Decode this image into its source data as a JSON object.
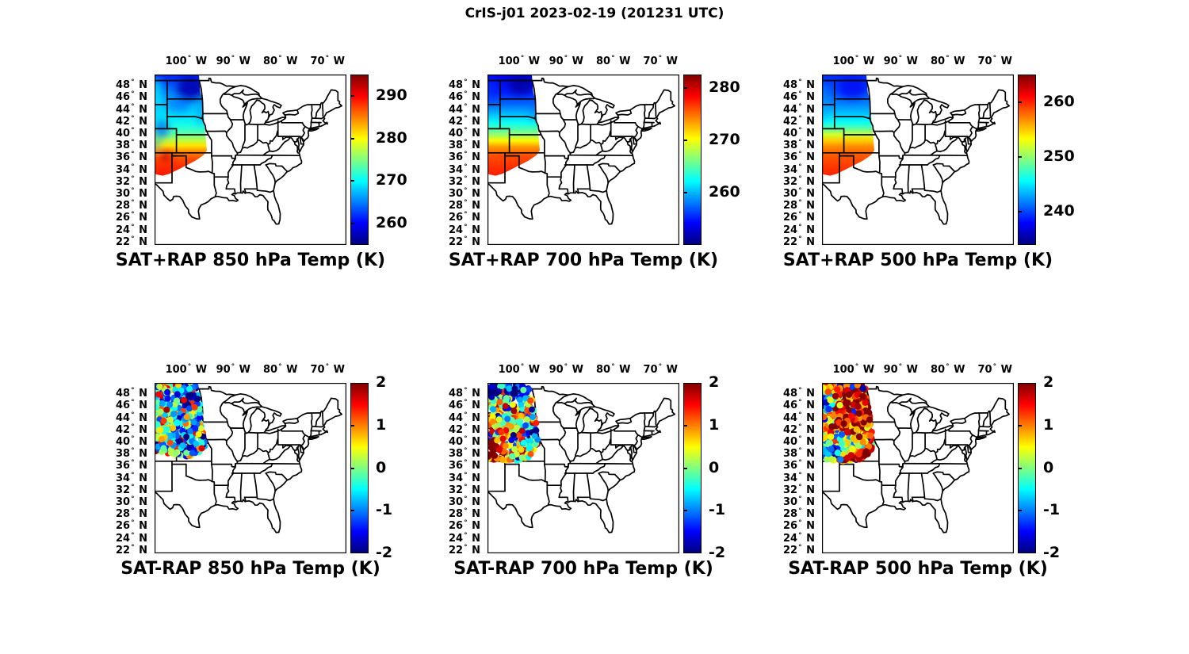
{
  "figure_title": "CrIS-j01 2023-02-19 (201231 UTC)",
  "colormap": "jet",
  "axes": {
    "lon_tick_labels": [
      "100° W",
      "90° W",
      "80° W",
      "70° W"
    ],
    "lon_tick_values": [
      -100,
      -90,
      -80,
      -70
    ],
    "lat_tick_labels": [
      "48° N",
      "46° N",
      "44° N",
      "42° N",
      "40° N",
      "38° N",
      "36° N",
      "34° N",
      "32° N",
      "30° N",
      "28° N",
      "26° N",
      "24° N",
      "22° N"
    ],
    "lat_tick_values": [
      48,
      46,
      44,
      42,
      40,
      38,
      36,
      34,
      32,
      30,
      28,
      26,
      24,
      22
    ],
    "extent": {
      "lon": [
        -106.7,
        -66.0
      ],
      "lat": [
        21.7,
        50.0
      ]
    }
  },
  "chart_data": [
    {
      "id": "sat-plus-rap-850",
      "type": "heatmap",
      "title": "SAT+RAP 850 hPa Temp (K)",
      "units": "K",
      "colorbar": {
        "vmin": 255,
        "vmax": 295,
        "ticks": [
          290,
          280,
          270,
          260
        ]
      },
      "region": [
        [
          -106.7,
          50.0
        ],
        [
          -97.3,
          50.0
        ],
        [
          -97.0,
          47.0
        ],
        [
          -96.6,
          45.9
        ],
        [
          -96.3,
          43.5
        ],
        [
          -96.05,
          41.0
        ],
        [
          -95.8,
          39.3
        ],
        [
          -95.6,
          37.4
        ],
        [
          -96.3,
          36.6
        ],
        [
          -98.0,
          35.7
        ],
        [
          -100.0,
          34.9
        ],
        [
          -102.0,
          34.1
        ],
        [
          -103.6,
          33.5
        ],
        [
          -105.0,
          33.2
        ],
        [
          -106.3,
          33.4
        ],
        [
          -106.7,
          33.6
        ]
      ],
      "lat_profile": [
        [
          50,
          261
        ],
        [
          47.5,
          264.5
        ],
        [
          45,
          267.5
        ],
        [
          43,
          269
        ],
        [
          41.5,
          271
        ],
        [
          40.2,
          273.5
        ],
        [
          39.2,
          277
        ],
        [
          38.2,
          281
        ],
        [
          37.2,
          284.5
        ],
        [
          36,
          287
        ],
        [
          34.5,
          288.5
        ],
        [
          33.2,
          289
        ]
      ],
      "patches": [
        {
          "lon": -99.0,
          "lat": 47.7,
          "rlon": 3.0,
          "rlat": 2.0,
          "value": 257,
          "opacity": 0.9
        },
        {
          "lon": -101.5,
          "lat": 45.0,
          "rlon": 2.5,
          "rlat": 1.2,
          "value": 263,
          "opacity": 0.5
        },
        {
          "lon": -106.4,
          "lat": 47.0,
          "rlon": 1.0,
          "rlat": 2.6,
          "value": 270,
          "opacity": 0.8
        },
        {
          "lon": -105.2,
          "lat": 41.0,
          "rlon": 1.5,
          "rlat": 1.5,
          "value": 263,
          "opacity": 0.7
        },
        {
          "lon": -106.4,
          "lat": 38.4,
          "rlon": 0.8,
          "rlat": 1.0,
          "value": 266,
          "opacity": 0.7
        },
        {
          "lon": -96.9,
          "lat": 43.8,
          "rlon": 0.8,
          "rlat": 2.4,
          "value": 265,
          "opacity": 0.5
        },
        {
          "lon": -104.4,
          "lat": 36.4,
          "rlon": 1.2,
          "rlat": 0.9,
          "value": 292.5,
          "opacity": 0.85
        }
      ]
    },
    {
      "id": "sat-plus-rap-700",
      "type": "heatmap",
      "title": "SAT+RAP 700 hPa Temp (K)",
      "units": "K",
      "colorbar": {
        "vmin": 250,
        "vmax": 282.5,
        "ticks": [
          280,
          270,
          260
        ]
      },
      "region": [
        [
          -106.7,
          50.0
        ],
        [
          -97.3,
          50.0
        ],
        [
          -97.0,
          47.0
        ],
        [
          -96.6,
          45.9
        ],
        [
          -96.3,
          43.5
        ],
        [
          -96.05,
          41.0
        ],
        [
          -95.8,
          39.3
        ],
        [
          -95.6,
          37.4
        ],
        [
          -96.3,
          36.6
        ],
        [
          -98.0,
          35.7
        ],
        [
          -100.0,
          34.9
        ],
        [
          -102.0,
          34.1
        ],
        [
          -103.6,
          33.5
        ],
        [
          -105.0,
          33.2
        ],
        [
          -106.3,
          33.4
        ],
        [
          -106.7,
          33.6
        ]
      ],
      "lat_profile": [
        [
          50,
          253.5
        ],
        [
          47,
          255
        ],
        [
          45,
          257.5
        ],
        [
          43.5,
          260
        ],
        [
          42,
          262.5
        ],
        [
          41,
          264.5
        ],
        [
          40,
          267
        ],
        [
          39,
          270.5
        ],
        [
          38,
          273.5
        ],
        [
          36.5,
          276
        ],
        [
          34.5,
          277
        ],
        [
          33.2,
          277.5
        ]
      ],
      "patches": [
        {
          "lon": -99.6,
          "lat": 48.3,
          "rlon": 2.8,
          "rlat": 1.6,
          "value": 251,
          "opacity": 0.85
        },
        {
          "lon": -106.3,
          "lat": 47.5,
          "rlon": 1.0,
          "rlat": 2.2,
          "value": 256,
          "opacity": 0.6
        },
        {
          "lon": -96.9,
          "lat": 44.0,
          "rlon": 0.8,
          "rlat": 2.0,
          "value": 257,
          "opacity": 0.4
        }
      ]
    },
    {
      "id": "sat-plus-rap-500",
      "type": "heatmap",
      "title": "SAT+RAP 500 hPa Temp (K)",
      "units": "K",
      "colorbar": {
        "vmin": 234,
        "vmax": 265,
        "ticks": [
          260,
          250,
          240
        ]
      },
      "region": [
        [
          -106.7,
          50.0
        ],
        [
          -97.3,
          50.0
        ],
        [
          -97.0,
          47.0
        ],
        [
          -96.6,
          45.9
        ],
        [
          -96.3,
          43.5
        ],
        [
          -96.05,
          41.0
        ],
        [
          -95.8,
          39.3
        ],
        [
          -95.6,
          37.4
        ],
        [
          -96.3,
          36.6
        ],
        [
          -98.0,
          35.7
        ],
        [
          -100.0,
          34.9
        ],
        [
          -102.0,
          34.1
        ],
        [
          -103.6,
          33.5
        ],
        [
          -105.0,
          33.2
        ],
        [
          -106.3,
          33.4
        ],
        [
          -106.7,
          33.6
        ]
      ],
      "lat_profile": [
        [
          50,
          239
        ],
        [
          47,
          240.5
        ],
        [
          45,
          242
        ],
        [
          43,
          244.5
        ],
        [
          42,
          246
        ],
        [
          41,
          248.5
        ],
        [
          40,
          252
        ],
        [
          39,
          255
        ],
        [
          38,
          257
        ],
        [
          36.5,
          258.5
        ],
        [
          34.5,
          259.5
        ],
        [
          33.2,
          260
        ]
      ],
      "patches": [
        {
          "lon": -100.3,
          "lat": 47.8,
          "rlon": 3.2,
          "rlat": 1.9,
          "value": 237.5,
          "opacity": 0.7
        },
        {
          "lon": -106.4,
          "lat": 45.5,
          "rlon": 0.9,
          "rlat": 3.2,
          "value": 243,
          "opacity": 0.5
        }
      ]
    },
    {
      "id": "sat-minus-rap-850",
      "type": "scatter",
      "title": "SAT-RAP 850 hPa Temp (K)",
      "units": "K",
      "colorbar": {
        "vmin": -2,
        "vmax": 2,
        "ticks": [
          2,
          1,
          0,
          -1,
          -2
        ]
      },
      "region": [
        [
          -106.6,
          49.6
        ],
        [
          -103.8,
          49.6
        ],
        [
          -100.5,
          49.7
        ],
        [
          -97.6,
          49.7
        ],
        [
          -97.0,
          46.5
        ],
        [
          -96.5,
          44.0
        ],
        [
          -96.2,
          42.0
        ],
        [
          -96.0,
          40.0
        ],
        [
          -95.9,
          39.0
        ],
        [
          -97.0,
          38.2
        ],
        [
          -99.0,
          37.8
        ],
        [
          -102.0,
          37.8
        ],
        [
          -104.5,
          38.2
        ],
        [
          -106.6,
          38.6
        ]
      ],
      "pattern": {
        "seed": 11,
        "count": 470,
        "dot_radius": 4.0,
        "base": -0.35,
        "noise": 0.85,
        "outlier_frac": 0.15,
        "blobs": [
          {
            "lon": -98.2,
            "lat": 47.9,
            "slon": 1.6,
            "slat": 1.2,
            "dv": -2.7
          },
          {
            "lon": -99.0,
            "lat": 41.3,
            "slon": 1.3,
            "slat": 1.1,
            "dv": -1.2
          },
          {
            "lon": -102.6,
            "lat": 44.6,
            "slon": 2.0,
            "slat": 1.3,
            "dv": 0.35
          }
        ]
      }
    },
    {
      "id": "sat-minus-rap-700",
      "type": "scatter",
      "title": "SAT-RAP 700 hPa Temp (K)",
      "units": "K",
      "colorbar": {
        "vmin": -2,
        "vmax": 2,
        "ticks": [
          2,
          1,
          0,
          -1,
          -2
        ]
      },
      "region": [
        [
          -106.6,
          49.6
        ],
        [
          -97.6,
          49.7
        ],
        [
          -97.0,
          46.5
        ],
        [
          -96.5,
          44.0
        ],
        [
          -96.1,
          41.5
        ],
        [
          -95.9,
          39.8
        ],
        [
          -96.3,
          38.6
        ],
        [
          -98.0,
          37.4
        ],
        [
          -101.0,
          37.0
        ],
        [
          -103.5,
          37.0
        ],
        [
          -105.0,
          37.2
        ],
        [
          -106.6,
          37.4
        ]
      ],
      "pattern": {
        "seed": 23,
        "count": 470,
        "dot_radius": 4.0,
        "base": 0.25,
        "noise": 0.8,
        "outlier_frac": 0.1,
        "blobs": [
          {
            "lon": -105.7,
            "lat": 48.7,
            "slon": 1.4,
            "slat": 1.0,
            "dv": -3.0
          },
          {
            "lon": -99.9,
            "lat": 48.7,
            "slon": 1.9,
            "slat": 1.0,
            "dv": -3.0
          },
          {
            "lon": -106.2,
            "lat": 39.9,
            "slon": 1.0,
            "slat": 2.3,
            "dv": 2.6
          },
          {
            "lon": -104.8,
            "lat": 38.4,
            "slon": 1.3,
            "slat": 1.0,
            "dv": 2.2
          },
          {
            "lon": -97.7,
            "lat": 41.4,
            "slon": 1.2,
            "slat": 1.0,
            "dv": -1.9
          },
          {
            "lon": -98.9,
            "lat": 43.4,
            "slon": 1.6,
            "slat": 1.0,
            "dv": -0.5
          }
        ]
      }
    },
    {
      "id": "sat-minus-rap-500",
      "type": "scatter",
      "title": "SAT-RAP 500 hPa Temp (K)",
      "units": "K",
      "colorbar": {
        "vmin": -2,
        "vmax": 2,
        "ticks": [
          2,
          1,
          0,
          -1,
          -2
        ]
      },
      "region": [
        [
          -106.6,
          49.6
        ],
        [
          -97.6,
          49.7
        ],
        [
          -97.0,
          46.5
        ],
        [
          -96.5,
          44.0
        ],
        [
          -96.1,
          41.5
        ],
        [
          -95.9,
          39.8
        ],
        [
          -96.3,
          38.6
        ],
        [
          -98.0,
          37.4
        ],
        [
          -101.0,
          37.0
        ],
        [
          -103.5,
          37.0
        ],
        [
          -105.0,
          37.2
        ],
        [
          -106.6,
          37.4
        ]
      ],
      "pattern": {
        "seed": 37,
        "count": 800,
        "dot_radius": 4.2,
        "base": 1.75,
        "noise": 0.8,
        "outlier_frac": 0.05,
        "blobs": [
          {
            "lon": -104.3,
            "lat": 38.7,
            "slon": 1.7,
            "slat": 1.2,
            "dv": -3.6
          },
          {
            "lon": -105.4,
            "lat": 46.9,
            "slon": 1.2,
            "slat": 1.4,
            "dv": -2.2
          },
          {
            "lon": -99.9,
            "lat": 40.4,
            "slon": 2.4,
            "slat": 0.9,
            "dv": -1.7
          },
          {
            "lon": -106.4,
            "lat": 44.5,
            "slon": 0.7,
            "slat": 5.0,
            "dv": -1.6
          },
          {
            "lon": -103.8,
            "lat": 42.2,
            "slon": 1.0,
            "slat": 0.8,
            "dv": -1.5
          }
        ]
      }
    }
  ]
}
